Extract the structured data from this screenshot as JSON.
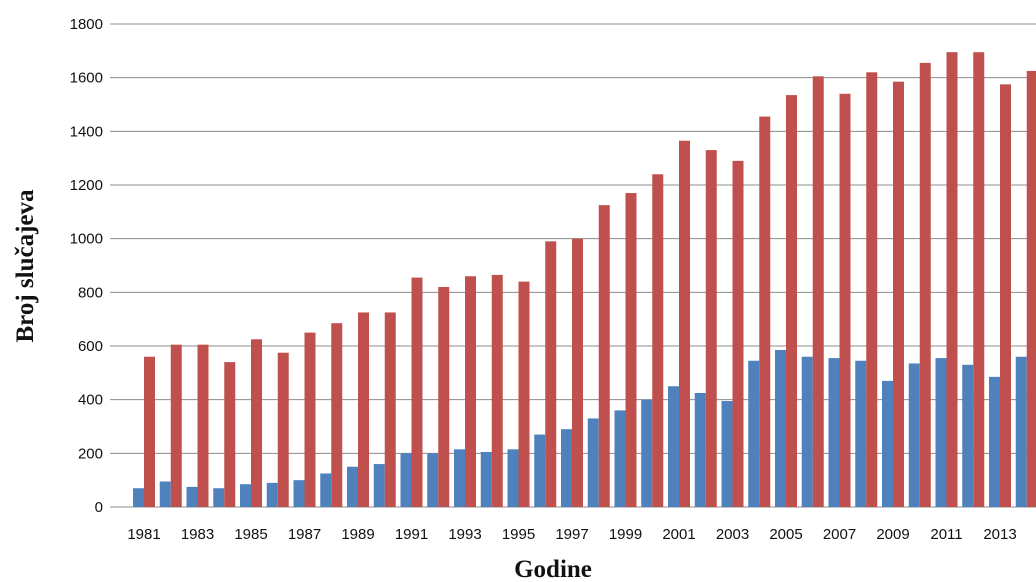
{
  "chart_data": {
    "type": "bar",
    "title": "",
    "xlabel": "Godine",
    "ylabel": "Broj slučajeva",
    "ylim": [
      0,
      1800
    ],
    "yticks": [
      0,
      200,
      400,
      600,
      800,
      1000,
      1200,
      1400,
      1600,
      1800
    ],
    "grid": true,
    "legend": "none",
    "categories": [
      "1981",
      "1982",
      "1983",
      "1984",
      "1985",
      "1986",
      "1987",
      "1988",
      "1989",
      "1990",
      "1991",
      "1992",
      "1993",
      "1994",
      "1995",
      "1996",
      "1997",
      "1998",
      "1999",
      "2000",
      "2001",
      "2002",
      "2003",
      "2004",
      "2005",
      "2006",
      "2007",
      "2008",
      "2009",
      "2010",
      "2011",
      "2012",
      "2013",
      "2014"
    ],
    "x_tick_labels": [
      "1981",
      "1983",
      "1985",
      "1987",
      "1989",
      "1991",
      "1993",
      "1995",
      "1997",
      "1999",
      "2001",
      "2003",
      "2005",
      "2007",
      "2009",
      "2011",
      "2013"
    ],
    "series": [
      {
        "color": "#4f81bd",
        "values": [
          70,
          95,
          75,
          70,
          85,
          90,
          100,
          125,
          150,
          160,
          200,
          200,
          215,
          205,
          215,
          270,
          290,
          330,
          360,
          400,
          450,
          425,
          395,
          545,
          585,
          560,
          555,
          545,
          470,
          535,
          555,
          530,
          485,
          560
        ]
      },
      {
        "color": "#c0504d",
        "values": [
          560,
          605,
          605,
          540,
          625,
          575,
          650,
          685,
          725,
          725,
          855,
          820,
          860,
          865,
          840,
          990,
          1000,
          1125,
          1170,
          1240,
          1365,
          1330,
          1290,
          1455,
          1535,
          1605,
          1540,
          1620,
          1585,
          1655,
          1695,
          1695,
          1575,
          1625
        ]
      }
    ]
  }
}
